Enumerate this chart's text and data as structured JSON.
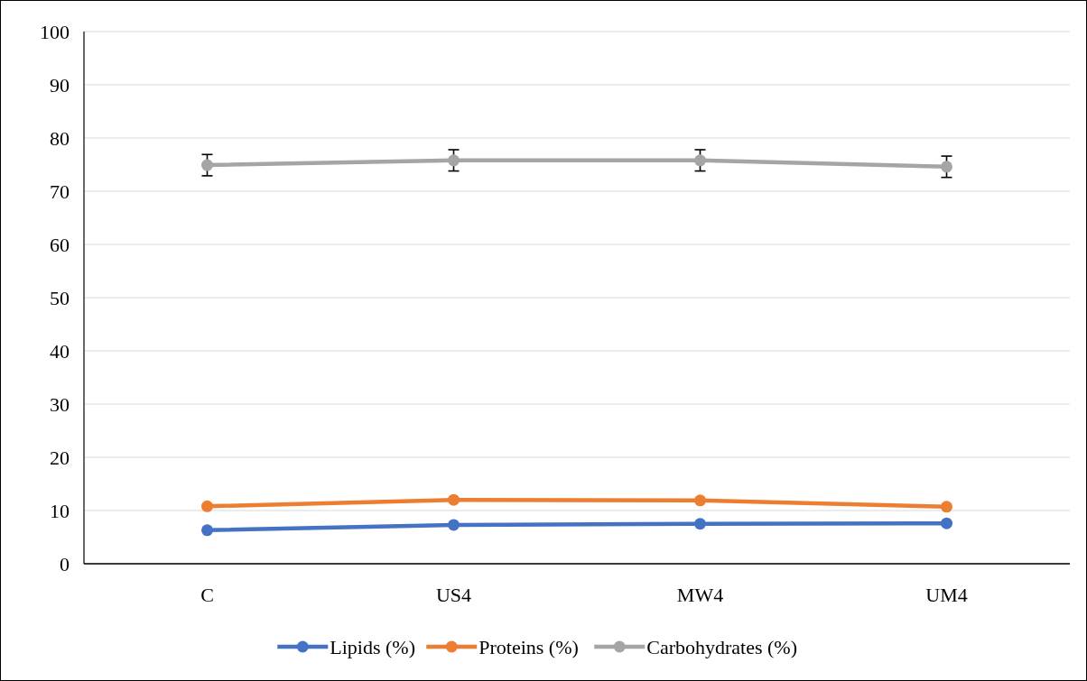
{
  "chart_data": {
    "type": "line",
    "categories": [
      "C",
      "US4",
      "MW4",
      "UM4"
    ],
    "series": [
      {
        "name": "Lipids (%)",
        "color": "#4472c4",
        "values": [
          6.3,
          7.3,
          7.5,
          7.6
        ]
      },
      {
        "name": "Proteins (%)",
        "color": "#ed7d31",
        "values": [
          10.8,
          12.0,
          11.9,
          10.7
        ]
      },
      {
        "name": "Carbohydrates (%)",
        "color": "#a5a5a5",
        "values": [
          74.9,
          75.8,
          75.8,
          74.6
        ],
        "errors": [
          2,
          2,
          2,
          2
        ]
      }
    ],
    "ylim": [
      0,
      100
    ],
    "yticks": [
      0,
      10,
      20,
      30,
      40,
      50,
      60,
      70,
      80,
      90,
      100
    ],
    "grid": "y",
    "legend": "bottom",
    "marker": "circle",
    "line_style": "solid"
  }
}
